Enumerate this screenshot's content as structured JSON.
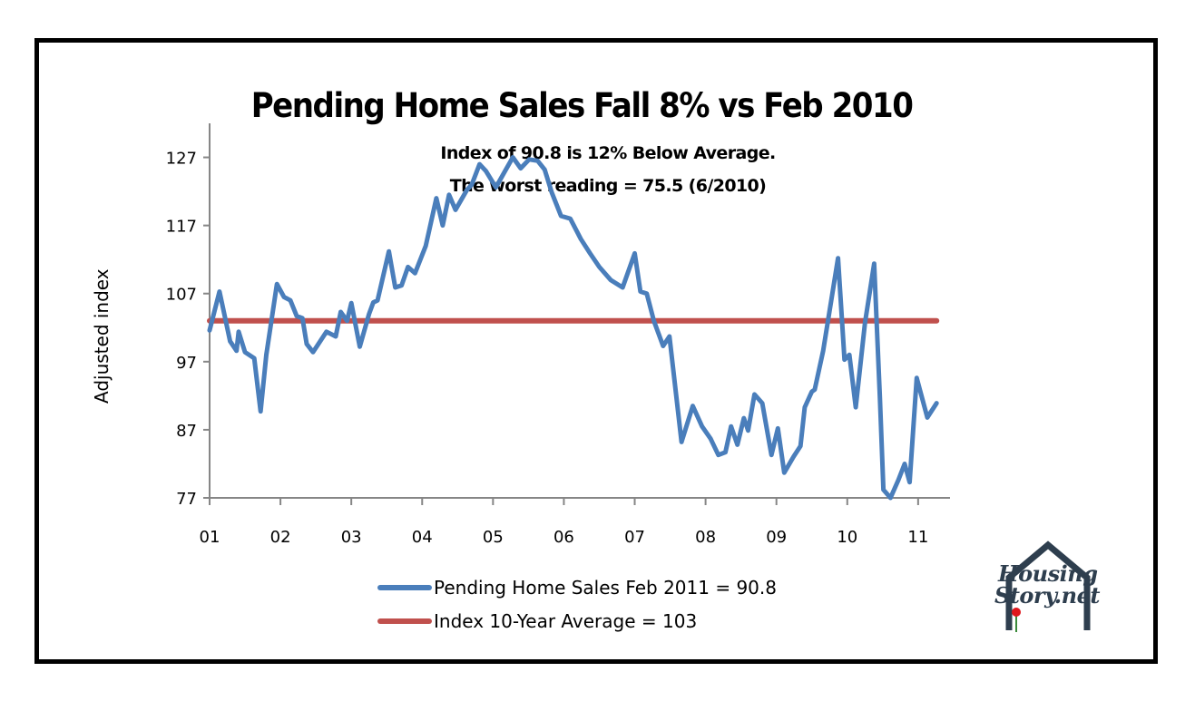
{
  "chart_data": {
    "type": "line",
    "title": "Pending Home Sales Fall 8% vs Feb 2010",
    "annotations": [
      "Index  of 90.8 is 12% Below Average.",
      "The worst reading = 75.5 (6/2010)"
    ],
    "xlabel": "",
    "ylabel": "Adjusted index",
    "ylim": [
      77,
      132
    ],
    "xlim": [
      2001.0,
      2011.45
    ],
    "y_ticks": [
      127,
      117,
      107,
      97,
      87,
      77
    ],
    "x_ticks": [
      {
        "value": 2001,
        "label": "01"
      },
      {
        "value": 2002,
        "label": "02"
      },
      {
        "value": 2003,
        "label": "03"
      },
      {
        "value": 2004,
        "label": "04"
      },
      {
        "value": 2005,
        "label": "05"
      },
      {
        "value": 2006,
        "label": "06"
      },
      {
        "value": 2007,
        "label": "07"
      },
      {
        "value": 2008,
        "label": "08"
      },
      {
        "value": 2009,
        "label": "09"
      },
      {
        "value": 2010,
        "label": "10"
      },
      {
        "value": 2011,
        "label": "11"
      }
    ],
    "grid": false,
    "legend_position": "bottom",
    "series": [
      {
        "name": "Pending Home Sales Feb 2011 = 90.8",
        "color": "#4a7ebb",
        "x": [
          2001.0,
          2001.14,
          2001.29,
          2001.38,
          2001.41,
          2001.5,
          2001.63,
          2001.72,
          2001.8,
          2001.95,
          2002.05,
          2002.14,
          2002.23,
          2002.31,
          2002.37,
          2002.46,
          2002.65,
          2002.78,
          2002.85,
          2002.94,
          2003.0,
          2003.12,
          2003.25,
          2003.31,
          2003.37,
          2003.53,
          2003.62,
          2003.71,
          2003.8,
          2003.9,
          2004.05,
          2004.2,
          2004.29,
          2004.38,
          2004.47,
          2004.63,
          2004.7,
          2004.81,
          2004.9,
          2005.04,
          2005.17,
          2005.28,
          2005.39,
          2005.51,
          2005.63,
          2005.73,
          2005.83,
          2005.96,
          2006.09,
          2006.24,
          2006.37,
          2006.5,
          2006.66,
          2006.83,
          2007.0,
          2007.08,
          2007.17,
          2007.27,
          2007.4,
          2007.49,
          2007.66,
          2007.82,
          2007.95,
          2008.07,
          2008.18,
          2008.28,
          2008.36,
          2008.45,
          2008.54,
          2008.6,
          2008.69,
          2008.8,
          2008.93,
          2009.02,
          2009.11,
          2009.24,
          2009.34,
          2009.4,
          2009.5,
          2009.54,
          2009.66,
          2009.87,
          2009.96,
          2010.03,
          2010.12,
          2010.25,
          2010.38,
          2010.46,
          2010.51,
          2010.61,
          2010.72,
          2010.81,
          2010.88,
          2010.98,
          2011.13,
          2011.26
        ],
        "values": [
          101.6,
          107.3,
          100.0,
          98.6,
          101.4,
          98.4,
          97.5,
          89.7,
          98.0,
          108.4,
          106.5,
          106.0,
          103.7,
          103.4,
          99.6,
          98.4,
          101.4,
          100.7,
          104.3,
          103.0,
          105.6,
          99.2,
          104.0,
          105.7,
          106.0,
          113.2,
          107.9,
          108.2,
          110.9,
          110.0,
          114.0,
          121.0,
          117.0,
          121.5,
          119.3,
          122.2,
          123.0,
          126.0,
          125.0,
          122.6,
          125.0,
          127.0,
          125.4,
          126.7,
          126.5,
          125.2,
          121.8,
          118.4,
          118.0,
          115.0,
          112.9,
          110.9,
          109.0,
          107.9,
          112.9,
          107.3,
          107.0,
          103.0,
          99.3,
          100.7,
          85.2,
          90.5,
          87.5,
          85.7,
          83.3,
          83.7,
          87.5,
          84.8,
          88.7,
          86.9,
          92.2,
          90.9,
          83.3,
          87.2,
          80.7,
          83.0,
          84.6,
          90.3,
          92.6,
          92.9,
          98.6,
          112.2,
          97.3,
          98.0,
          90.3,
          102.7,
          111.4,
          91.8,
          78.2,
          77.0,
          79.6,
          82.0,
          79.3,
          94.6,
          88.8,
          90.9
        ]
      },
      {
        "name": "Index 10-Year Average = 103",
        "color": "#c0504d",
        "x": [
          2001.0,
          2011.26
        ],
        "values": [
          103,
          103
        ]
      }
    ]
  },
  "logo": {
    "line1": "Housing",
    "line2": "Story.net",
    "roof_color": "#2e3e4e",
    "pin_color": "#e0161b"
  }
}
